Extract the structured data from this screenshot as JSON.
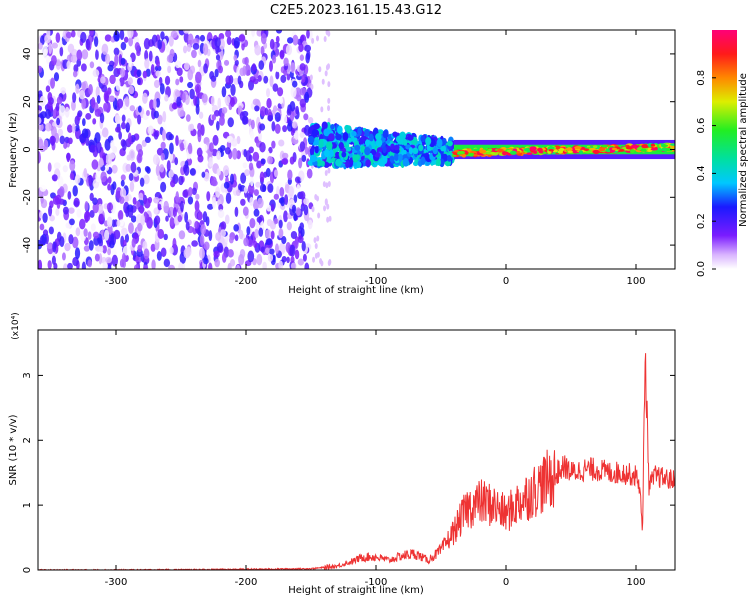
{
  "chart_data": [
    {
      "type": "heatmap",
      "title": "C2E5.2023.161.15.43.G12",
      "xlabel": "Height of straight line (km)",
      "ylabel": "Frequency (Hz)",
      "xlim": [
        -360,
        130
      ],
      "ylim": [
        -50,
        50
      ],
      "xticks": [
        -300,
        -200,
        -100,
        0,
        100
      ],
      "yticks": [
        -40,
        -20,
        0,
        20,
        40
      ],
      "colorbar": {
        "label": "Normalized spectral amplitude",
        "range": [
          0,
          1
        ],
        "ticks": [
          0.0,
          0.2,
          0.4,
          0.6,
          0.8
        ],
        "tick_labels": [
          "0.0",
          "0.2",
          "0.4",
          "0.6",
          "0.8"
        ]
      },
      "regions": [
        {
          "x": [
            -360,
            -150
          ],
          "kind": "broadband noise",
          "amplitude": [
            0.0,
            0.25
          ]
        },
        {
          "x": [
            -150,
            -40
          ],
          "kind": "emerging signal near 0 Hz",
          "freq_spread_hz": [
            -8,
            10
          ],
          "amplitude": [
            0.2,
            0.45
          ]
        },
        {
          "x": [
            -40,
            130
          ],
          "kind": "narrow line near 0 Hz",
          "freq_spread_hz": [
            -4,
            4
          ],
          "amplitude": [
            0.5,
            1.0
          ]
        }
      ],
      "grid": false
    },
    {
      "type": "line",
      "xlabel": "Height of straight line (km)",
      "ylabel": "SNR (10 * v/v)",
      "ymultiplier": "(x10⁴)",
      "xlim": [
        -360,
        130
      ],
      "ylim": [
        0,
        3.7
      ],
      "xticks": [
        -300,
        -200,
        -100,
        0,
        100
      ],
      "yticks": [
        0,
        1,
        2,
        3
      ],
      "series": [
        {
          "color": "#ee3333",
          "x": [
            -360,
            -300,
            -200,
            -150,
            -130,
            -120,
            -110,
            -100,
            -90,
            -80,
            -70,
            -60,
            -50,
            -40,
            -30,
            -20,
            -10,
            0,
            10,
            20,
            30,
            40,
            45,
            50,
            60,
            70,
            80,
            90,
            100,
            103,
            105,
            107,
            110,
            115,
            120,
            130
          ],
          "y": [
            0.0,
            0.0,
            0.01,
            0.02,
            0.06,
            0.12,
            0.2,
            0.2,
            0.15,
            0.22,
            0.25,
            0.15,
            0.3,
            0.6,
            0.95,
            1.05,
            1.0,
            0.85,
            1.05,
            1.2,
            1.35,
            1.5,
            1.6,
            1.5,
            1.55,
            1.55,
            1.5,
            1.5,
            1.45,
            1.3,
            0.5,
            3.4,
            1.3,
            1.45,
            1.42,
            1.38
          ]
        }
      ],
      "grid": false
    }
  ]
}
